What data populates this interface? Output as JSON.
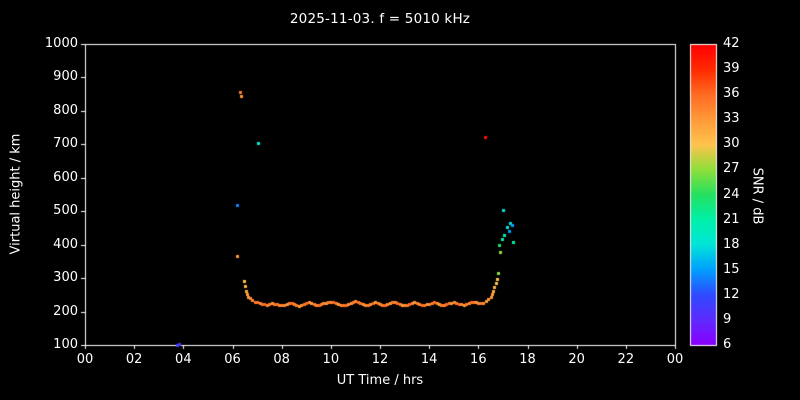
{
  "figure": {
    "background_color": "#000000",
    "text_color": "#ffffff",
    "axis_color": "#ffffff"
  },
  "chart_data": {
    "type": "scatter",
    "title": "2025-11-03. f = 5010 kHz",
    "xlabel": "UT Time / hrs",
    "ylabel": "Virtual height / km",
    "colorbar_label": "SNR / dB",
    "xlim": [
      0,
      24
    ],
    "ylim": [
      100,
      1000
    ],
    "grid": false,
    "x_ticks": {
      "values": [
        0,
        2,
        4,
        6,
        8,
        10,
        12,
        14,
        16,
        18,
        20,
        22,
        24
      ],
      "labels": [
        "00",
        "02",
        "04",
        "06",
        "08",
        "10",
        "12",
        "14",
        "16",
        "18",
        "20",
        "22",
        "00"
      ]
    },
    "y_ticks": [
      100,
      200,
      300,
      400,
      500,
      600,
      700,
      800,
      900,
      1000
    ],
    "colorbar_ticks": [
      42,
      39,
      36,
      33,
      30,
      27,
      24,
      21,
      18,
      15,
      12,
      9,
      6
    ],
    "colormap": [
      [
        6,
        "#8a00ff"
      ],
      [
        9,
        "#5d2bff"
      ],
      [
        12,
        "#2e4bff"
      ],
      [
        15,
        "#00a0ff"
      ],
      [
        18,
        "#00e5d8"
      ],
      [
        21,
        "#00f0a8"
      ],
      [
        24,
        "#25e060"
      ],
      [
        27,
        "#8fdf3a"
      ],
      [
        30,
        "#ffc34d"
      ],
      [
        33,
        "#ff9a38"
      ],
      [
        36,
        "#ff6a22"
      ],
      [
        39,
        "#ff2a00"
      ],
      [
        42,
        "#ff0000"
      ]
    ],
    "points_format": [
      "ut_hours",
      "virtual_height_km",
      "snr_db"
    ],
    "points": [
      [
        3.75,
        101,
        12
      ],
      [
        3.82,
        103,
        9
      ],
      [
        6.18,
        520,
        14
      ],
      [
        6.2,
        365,
        33
      ],
      [
        6.3,
        857,
        35
      ],
      [
        6.36,
        846,
        33
      ],
      [
        6.45,
        290,
        30
      ],
      [
        6.5,
        275,
        31
      ],
      [
        6.55,
        262,
        32
      ],
      [
        6.6,
        252,
        33
      ],
      [
        6.65,
        245,
        33
      ],
      [
        6.7,
        240,
        34
      ],
      [
        6.8,
        234,
        34
      ],
      [
        6.9,
        230,
        35
      ],
      [
        7.0,
        228,
        35
      ],
      [
        7.05,
        705,
        19
      ],
      [
        7.1,
        226,
        34
      ],
      [
        7.2,
        224,
        35
      ],
      [
        7.3,
        222,
        36
      ],
      [
        7.4,
        221,
        34
      ],
      [
        7.5,
        223,
        35
      ],
      [
        7.6,
        225,
        33
      ],
      [
        7.7,
        224,
        35
      ],
      [
        7.8,
        222,
        36
      ],
      [
        7.9,
        220,
        34
      ],
      [
        8.0,
        219,
        35
      ],
      [
        8.1,
        221,
        34
      ],
      [
        8.2,
        224,
        33
      ],
      [
        8.3,
        226,
        35
      ],
      [
        8.4,
        225,
        36
      ],
      [
        8.5,
        222,
        34
      ],
      [
        8.6,
        220,
        35
      ],
      [
        8.7,
        218,
        33
      ],
      [
        8.8,
        220,
        34
      ],
      [
        8.9,
        223,
        35
      ],
      [
        9.0,
        226,
        36
      ],
      [
        9.1,
        228,
        34
      ],
      [
        9.2,
        226,
        33
      ],
      [
        9.3,
        223,
        35
      ],
      [
        9.4,
        221,
        34
      ],
      [
        9.5,
        220,
        36
      ],
      [
        9.6,
        222,
        35
      ],
      [
        9.7,
        225,
        34
      ],
      [
        9.8,
        227,
        33
      ],
      [
        9.9,
        229,
        35
      ],
      [
        10.0,
        230,
        34
      ],
      [
        10.1,
        228,
        36
      ],
      [
        10.2,
        225,
        35
      ],
      [
        10.3,
        222,
        33
      ],
      [
        10.4,
        220,
        34
      ],
      [
        10.5,
        219,
        35
      ],
      [
        10.6,
        221,
        36
      ],
      [
        10.7,
        224,
        34
      ],
      [
        10.8,
        227,
        33
      ],
      [
        10.9,
        230,
        35
      ],
      [
        11.0,
        232,
        34
      ],
      [
        11.1,
        229,
        36
      ],
      [
        11.2,
        226,
        35
      ],
      [
        11.3,
        223,
        33
      ],
      [
        11.4,
        221,
        34
      ],
      [
        11.5,
        220,
        35
      ],
      [
        11.6,
        222,
        34
      ],
      [
        11.7,
        225,
        36
      ],
      [
        11.8,
        228,
        33
      ],
      [
        11.9,
        226,
        35
      ],
      [
        12.0,
        223,
        34
      ],
      [
        12.1,
        221,
        35
      ],
      [
        12.2,
        220,
        36
      ],
      [
        12.3,
        222,
        34
      ],
      [
        12.4,
        225,
        33
      ],
      [
        12.5,
        228,
        35
      ],
      [
        12.6,
        230,
        34
      ],
      [
        12.7,
        227,
        36
      ],
      [
        12.8,
        224,
        35
      ],
      [
        12.9,
        221,
        33
      ],
      [
        13.0,
        219,
        34
      ],
      [
        13.1,
        220,
        35
      ],
      [
        13.2,
        223,
        36
      ],
      [
        13.3,
        226,
        34
      ],
      [
        13.4,
        228,
        33
      ],
      [
        13.5,
        226,
        35
      ],
      [
        13.6,
        223,
        34
      ],
      [
        13.7,
        221,
        36
      ],
      [
        13.8,
        220,
        35
      ],
      [
        13.9,
        222,
        33
      ],
      [
        14.0,
        224,
        34
      ],
      [
        14.1,
        226,
        35
      ],
      [
        14.2,
        228,
        36
      ],
      [
        14.3,
        226,
        34
      ],
      [
        14.4,
        223,
        33
      ],
      [
        14.5,
        221,
        35
      ],
      [
        14.6,
        220,
        34
      ],
      [
        14.7,
        222,
        36
      ],
      [
        14.8,
        225,
        35
      ],
      [
        14.9,
        227,
        33
      ],
      [
        15.0,
        229,
        34
      ],
      [
        15.1,
        227,
        35
      ],
      [
        15.2,
        224,
        36
      ],
      [
        15.3,
        222,
        34
      ],
      [
        15.4,
        221,
        33
      ],
      [
        15.5,
        223,
        35
      ],
      [
        15.6,
        226,
        34
      ],
      [
        15.7,
        228,
        36
      ],
      [
        15.8,
        230,
        35
      ],
      [
        15.9,
        228,
        33
      ],
      [
        16.0,
        226,
        34
      ],
      [
        16.1,
        225,
        35
      ],
      [
        16.2,
        227,
        34
      ],
      [
        16.27,
        723,
        41
      ],
      [
        16.3,
        231,
        33
      ],
      [
        16.4,
        237,
        33
      ],
      [
        16.5,
        245,
        33
      ],
      [
        16.55,
        252,
        33
      ],
      [
        16.6,
        262,
        32
      ],
      [
        16.65,
        272,
        31
      ],
      [
        16.7,
        285,
        30
      ],
      [
        16.75,
        298,
        30
      ],
      [
        16.8,
        315,
        27
      ],
      [
        16.85,
        400,
        24
      ],
      [
        16.9,
        378,
        27
      ],
      [
        16.95,
        418,
        21
      ],
      [
        17.0,
        505,
        18
      ],
      [
        17.05,
        430,
        21
      ],
      [
        17.15,
        452,
        18
      ],
      [
        17.25,
        440,
        15
      ],
      [
        17.3,
        465,
        18
      ],
      [
        17.35,
        460,
        15
      ],
      [
        17.4,
        408,
        21
      ]
    ]
  }
}
